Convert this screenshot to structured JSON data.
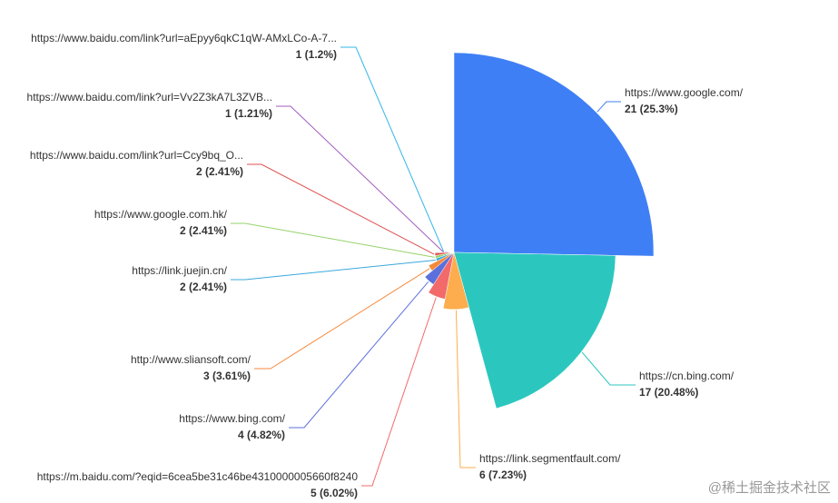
{
  "chart_data": {
    "type": "rose",
    "categories": [
      "https://www.google.com/",
      "https://cn.bing.com/",
      "https://link.segmentfault.com/",
      "https://m.baidu.com/?eqid=6cea5be31c46be4310000005660f8240",
      "https://www.bing.com/",
      "http://www.sliansoft.com/",
      "https://link.juejin.cn/",
      "https://www.google.com.hk/",
      "https://www.baidu.com/link?url=Ccy9bq_O...",
      "https://www.baidu.com/link?url=Vv2Z3kA7L3ZVB...",
      "https://www.baidu.com/link?url=aEpyy6qkC1qW-AMxLCo-A-7..."
    ],
    "values": [
      21,
      17,
      6,
      5,
      4,
      3,
      2,
      2,
      2,
      1,
      1
    ],
    "percents": [
      25.3,
      20.48,
      7.23,
      6.02,
      4.82,
      3.61,
      2.41,
      2.41,
      2.41,
      1.21,
      1.2
    ],
    "value_labels": [
      "21 (25.3%)",
      "17 (20.48%)",
      "6 (7.23%)",
      "5 (6.02%)",
      "4 (4.82%)",
      "3 (3.61%)",
      "2 (2.41%)",
      "2 (2.41%)",
      "2 (2.41%)",
      "1 (1.21%)",
      "1 (1.2%)"
    ],
    "colors": [
      "#3f7ff6",
      "#2bc7bf",
      "#fdad4d",
      "#f26a6a",
      "#5b70dc",
      "#f5893b",
      "#3aa8dd",
      "#96d26b",
      "#e05050",
      "#a05cc0",
      "#33b6e6"
    ],
    "watermark": "@稀土掘金技术社区"
  }
}
